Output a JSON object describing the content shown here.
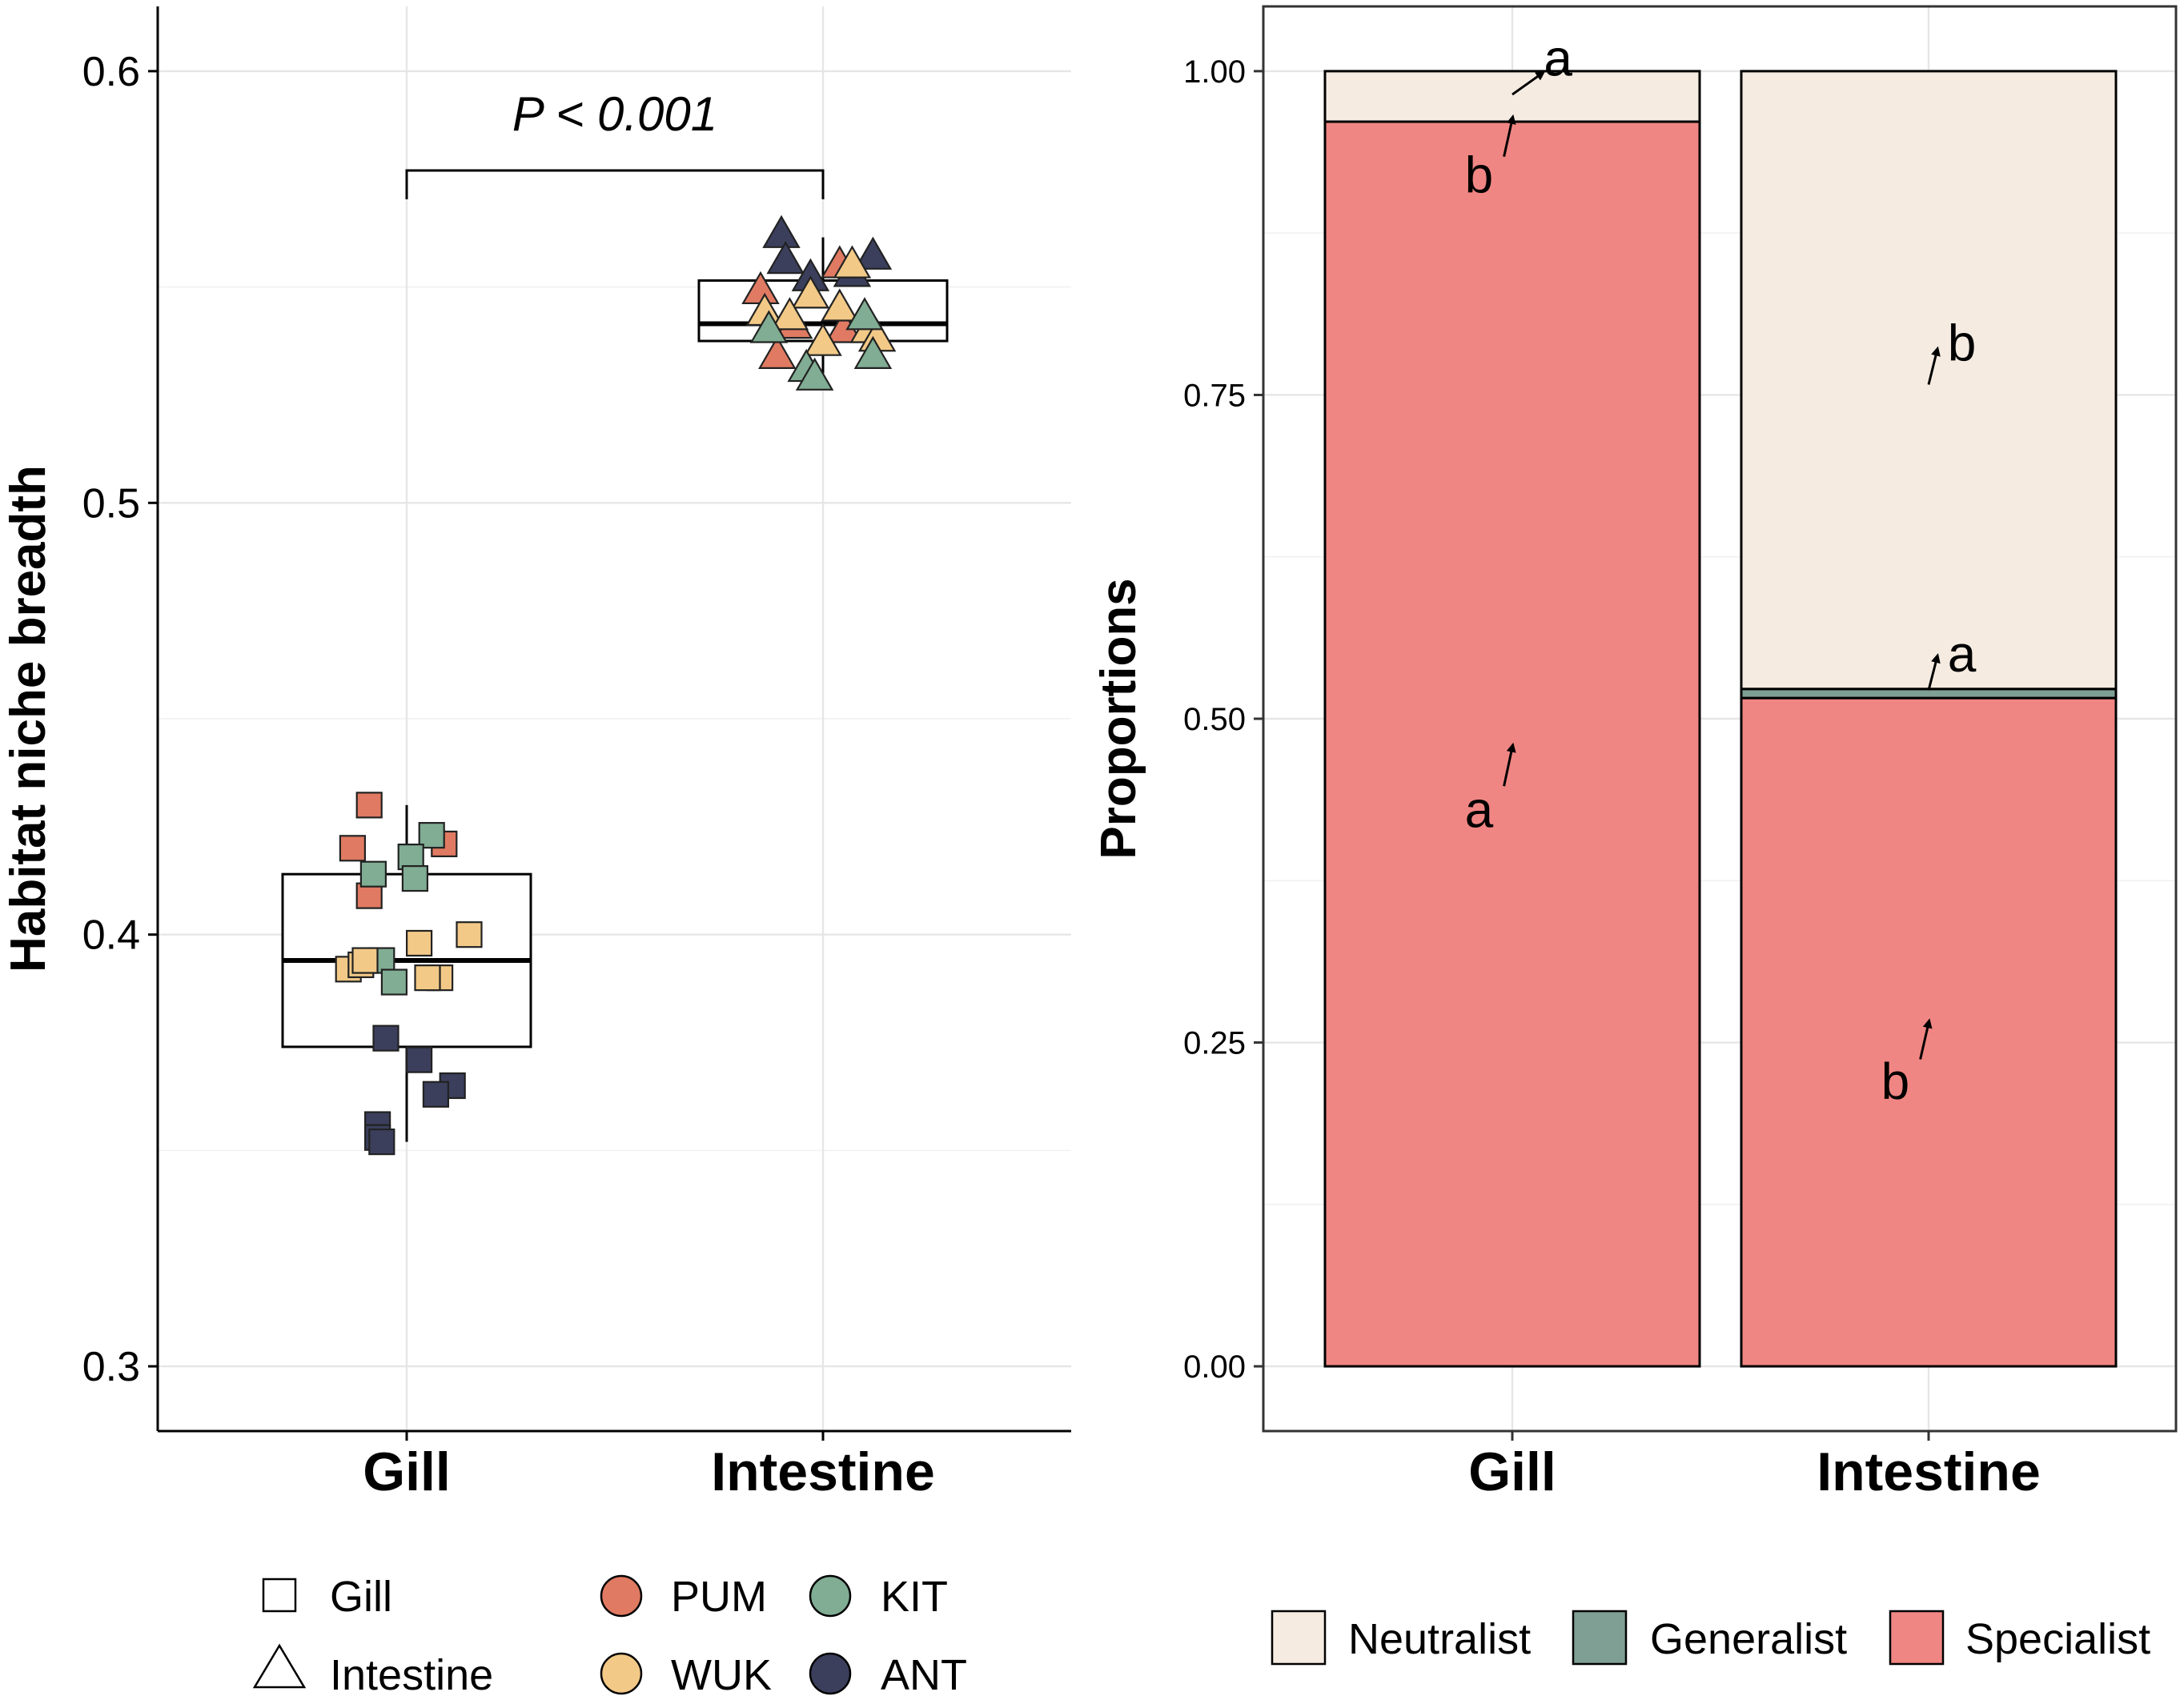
{
  "colors": {
    "PUM": "#e07a62",
    "WUK": "#f2c987",
    "KIT": "#80ad93",
    "ANT": "#3b3f5c",
    "Neutralist": "#f5ebe1",
    "Generalist": "#7f9f95",
    "Specialist": "#f08683"
  },
  "chart_data": [
    {
      "type": "box",
      "ylabel": "Habitat niche breadth",
      "xlabel": "",
      "categories": [
        "Gill",
        "Intestine"
      ],
      "ylim": [
        0.285,
        0.615
      ],
      "yticks": [
        0.3,
        0.4,
        0.5,
        0.6
      ],
      "ytick_labels": [
        "0.3",
        "0.4",
        "0.5",
        "0.6"
      ],
      "annotation": {
        "text": "P < 0.001",
        "bracket_y": 0.577,
        "label_y": 0.59
      },
      "boxes": [
        {
          "category": "Gill",
          "q1": 0.374,
          "median": 0.394,
          "q3": 0.414,
          "whisker_low": 0.352,
          "whisker_high": 0.43
        },
        {
          "category": "Intestine",
          "q1": 0.5375,
          "median": 0.5415,
          "q3": 0.5515,
          "whisker_low": 0.53,
          "whisker_high": 0.5615
        }
      ],
      "points": [
        {
          "cat": "Gill",
          "dx": -0.09,
          "y": 0.43,
          "site": "PUM"
        },
        {
          "cat": "Gill",
          "dx": -0.13,
          "y": 0.42,
          "site": "PUM"
        },
        {
          "cat": "Gill",
          "dx": 0.09,
          "y": 0.421,
          "site": "PUM"
        },
        {
          "cat": "Gill",
          "dx": -0.09,
          "y": 0.409,
          "site": "PUM"
        },
        {
          "cat": "Gill",
          "dx": 0.06,
          "y": 0.423,
          "site": "KIT"
        },
        {
          "cat": "Gill",
          "dx": 0.01,
          "y": 0.418,
          "site": "KIT"
        },
        {
          "cat": "Gill",
          "dx": -0.08,
          "y": 0.414,
          "site": "KIT"
        },
        {
          "cat": "Gill",
          "dx": 0.02,
          "y": 0.413,
          "site": "KIT"
        },
        {
          "cat": "Gill",
          "dx": -0.06,
          "y": 0.394,
          "site": "KIT"
        },
        {
          "cat": "Gill",
          "dx": -0.03,
          "y": 0.389,
          "site": "KIT"
        },
        {
          "cat": "Gill",
          "dx": 0.15,
          "y": 0.4,
          "site": "WUK"
        },
        {
          "cat": "Gill",
          "dx": 0.03,
          "y": 0.398,
          "site": "WUK"
        },
        {
          "cat": "Gill",
          "dx": -0.14,
          "y": 0.392,
          "site": "WUK"
        },
        {
          "cat": "Gill",
          "dx": -0.11,
          "y": 0.393,
          "site": "WUK"
        },
        {
          "cat": "Gill",
          "dx": -0.1,
          "y": 0.394,
          "site": "WUK"
        },
        {
          "cat": "Gill",
          "dx": 0.08,
          "y": 0.39,
          "site": "WUK"
        },
        {
          "cat": "Gill",
          "dx": 0.05,
          "y": 0.39,
          "site": "WUK"
        },
        {
          "cat": "Gill",
          "dx": -0.05,
          "y": 0.376,
          "site": "ANT"
        },
        {
          "cat": "Gill",
          "dx": 0.03,
          "y": 0.371,
          "site": "ANT"
        },
        {
          "cat": "Gill",
          "dx": 0.11,
          "y": 0.365,
          "site": "ANT"
        },
        {
          "cat": "Gill",
          "dx": 0.07,
          "y": 0.363,
          "site": "ANT"
        },
        {
          "cat": "Gill",
          "dx": -0.07,
          "y": 0.356,
          "site": "ANT"
        },
        {
          "cat": "Gill",
          "dx": -0.07,
          "y": 0.353,
          "site": "ANT"
        },
        {
          "cat": "Gill",
          "dx": -0.06,
          "y": 0.352,
          "site": "ANT"
        },
        {
          "cat": "Intestine",
          "dx": -0.1,
          "y": 0.562,
          "site": "ANT"
        },
        {
          "cat": "Intestine",
          "dx": -0.09,
          "y": 0.556,
          "site": "ANT"
        },
        {
          "cat": "Intestine",
          "dx": -0.03,
          "y": 0.552,
          "site": "ANT"
        },
        {
          "cat": "Intestine",
          "dx": 0.12,
          "y": 0.557,
          "site": "ANT"
        },
        {
          "cat": "Intestine",
          "dx": 0.07,
          "y": 0.553,
          "site": "ANT"
        },
        {
          "cat": "Intestine",
          "dx": 0.04,
          "y": 0.555,
          "site": "PUM"
        },
        {
          "cat": "Intestine",
          "dx": -0.15,
          "y": 0.549,
          "site": "PUM"
        },
        {
          "cat": "Intestine",
          "dx": -0.07,
          "y": 0.541,
          "site": "PUM"
        },
        {
          "cat": "Intestine",
          "dx": -0.11,
          "y": 0.534,
          "site": "PUM"
        },
        {
          "cat": "Intestine",
          "dx": 0.05,
          "y": 0.54,
          "site": "PUM"
        },
        {
          "cat": "Intestine",
          "dx": 0.07,
          "y": 0.555,
          "site": "WUK"
        },
        {
          "cat": "Intestine",
          "dx": -0.03,
          "y": 0.548,
          "site": "WUK"
        },
        {
          "cat": "Intestine",
          "dx": -0.14,
          "y": 0.544,
          "site": "WUK"
        },
        {
          "cat": "Intestine",
          "dx": -0.08,
          "y": 0.543,
          "site": "WUK"
        },
        {
          "cat": "Intestine",
          "dx": 0.04,
          "y": 0.545,
          "site": "WUK"
        },
        {
          "cat": "Intestine",
          "dx": 0.11,
          "y": 0.54,
          "site": "WUK"
        },
        {
          "cat": "Intestine",
          "dx": 0.0,
          "y": 0.537,
          "site": "WUK"
        },
        {
          "cat": "Intestine",
          "dx": 0.13,
          "y": 0.538,
          "site": "WUK"
        },
        {
          "cat": "Intestine",
          "dx": 0.1,
          "y": 0.543,
          "site": "KIT"
        },
        {
          "cat": "Intestine",
          "dx": -0.13,
          "y": 0.54,
          "site": "KIT"
        },
        {
          "cat": "Intestine",
          "dx": 0.12,
          "y": 0.534,
          "site": "KIT"
        },
        {
          "cat": "Intestine",
          "dx": -0.04,
          "y": 0.531,
          "site": "KIT"
        },
        {
          "cat": "Intestine",
          "dx": -0.02,
          "y": 0.529,
          "site": "KIT"
        }
      ],
      "legend": {
        "shapes": [
          {
            "label": "Gill",
            "shape": "square"
          },
          {
            "label": "Intestine",
            "shape": "triangle"
          }
        ],
        "sites": [
          "PUM",
          "KIT",
          "WUK",
          "ANT"
        ]
      }
    },
    {
      "type": "stacked-bar",
      "ylabel": "Proportions",
      "xlabel": "",
      "categories": [
        "Gill",
        "Intestine"
      ],
      "ylim": [
        -0.05,
        1.05
      ],
      "yticks": [
        0,
        0.25,
        0.5,
        0.75,
        1
      ],
      "ytick_labels": [
        "0.00",
        "0.25",
        "0.50",
        "0.75",
        "1.00"
      ],
      "series": [
        {
          "name": "Specialist",
          "values": [
            0.961,
            0.516
          ]
        },
        {
          "name": "Generalist",
          "values": [
            0.0,
            0.007
          ]
        },
        {
          "name": "Neutralist",
          "values": [
            0.039,
            0.477
          ]
        }
      ],
      "legend": [
        "Neutralist",
        "Generalist",
        "Specialist"
      ],
      "annotations": [
        {
          "cat": "Gill",
          "text": "a",
          "tx": 0.11,
          "ty": 1.01,
          "ax": 0.0,
          "ay": 0.982,
          "hx": 0.07,
          "hy": 0.998
        },
        {
          "cat": "Gill",
          "text": "b",
          "tx": -0.08,
          "ty": 0.92,
          "ax": -0.02,
          "ay": 0.934,
          "hx": 0.0,
          "hy": 0.963
        },
        {
          "cat": "Gill",
          "text": "a",
          "tx": -0.08,
          "ty": 0.43,
          "ax": -0.02,
          "ay": 0.448,
          "hx": 0.0,
          "hy": 0.478
        },
        {
          "cat": "Intestine",
          "text": "b",
          "tx": 0.08,
          "ty": 0.79,
          "ax": 0.0,
          "ay": 0.758,
          "hx": 0.02,
          "hy": 0.784
        },
        {
          "cat": "Intestine",
          "text": "a",
          "tx": 0.08,
          "ty": 0.55,
          "ax": 0.0,
          "ay": 0.522,
          "hx": 0.02,
          "hy": 0.547
        },
        {
          "cat": "Intestine",
          "text": "b",
          "tx": -0.08,
          "ty": 0.22,
          "ax": -0.02,
          "ay": 0.237,
          "hx": 0.0,
          "hy": 0.265
        }
      ]
    }
  ]
}
